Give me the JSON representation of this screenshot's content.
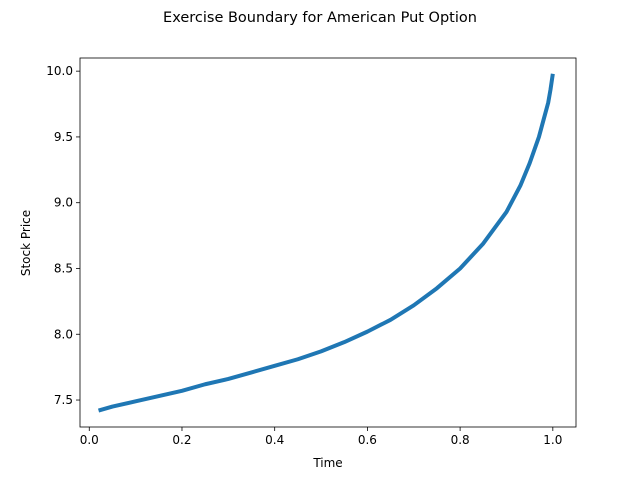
{
  "chart_data": {
    "type": "line",
    "title": "Exercise Boundary for American Put Option",
    "xlabel": "Time",
    "ylabel": "Stock Price",
    "xlim": [
      -0.02,
      1.05
    ],
    "ylim": [
      7.295,
      10.1
    ],
    "xticks": [
      0.0,
      0.2,
      0.4,
      0.6,
      0.8,
      1.0
    ],
    "xtick_labels": [
      "0.0",
      "0.2",
      "0.4",
      "0.6",
      "0.8",
      "1.0"
    ],
    "yticks": [
      7.5,
      8.0,
      8.5,
      9.0,
      9.5,
      10.0
    ],
    "ytick_labels": [
      "7.5",
      "8.0",
      "8.5",
      "9.0",
      "9.5",
      "10.0"
    ],
    "grid": false,
    "line_color": "#1f77b4",
    "series": [
      {
        "name": "",
        "x": [
          0.02,
          0.05,
          0.1,
          0.15,
          0.2,
          0.25,
          0.3,
          0.35,
          0.4,
          0.45,
          0.5,
          0.55,
          0.6,
          0.65,
          0.7,
          0.75,
          0.8,
          0.85,
          0.9,
          0.93,
          0.95,
          0.97,
          0.98,
          0.99,
          0.995,
          1.0
        ],
        "y": [
          7.42,
          7.45,
          7.49,
          7.53,
          7.57,
          7.62,
          7.66,
          7.71,
          7.76,
          7.81,
          7.87,
          7.94,
          8.02,
          8.11,
          8.22,
          8.35,
          8.5,
          8.69,
          8.93,
          9.13,
          9.3,
          9.5,
          9.63,
          9.76,
          9.86,
          9.98
        ]
      }
    ]
  }
}
